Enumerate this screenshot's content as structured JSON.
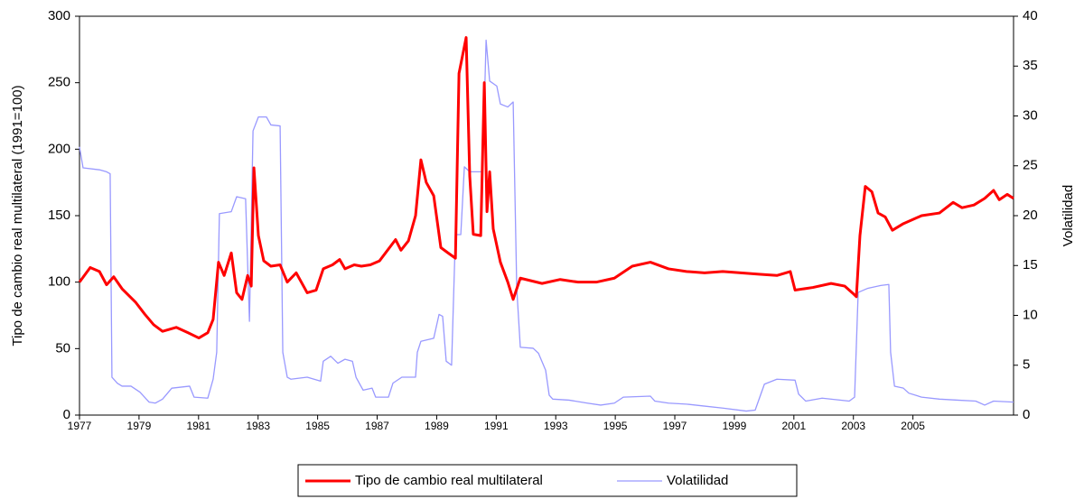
{
  "chart_data": {
    "type": "line",
    "y_label": "Tipo de cambio real multilateral (1991=100)",
    "y2_label": "Volatilidad",
    "xlim": [
      1977,
      2008.38
    ],
    "xticks": [
      1977,
      1979,
      1981,
      1983,
      1985,
      1987,
      1989,
      1991,
      1993,
      1995,
      1997,
      1999,
      2001,
      2003,
      2005
    ],
    "ylim": [
      0,
      300
    ],
    "yticks": [
      0,
      50,
      100,
      150,
      200,
      250,
      300
    ],
    "y2lim": [
      0,
      40
    ],
    "y2ticks": [
      0,
      5,
      10,
      15,
      20,
      25,
      30,
      35,
      40
    ],
    "legend": "bottom",
    "series": [
      {
        "name": "Tipo de cambio real multilateral",
        "color": "#ff0000",
        "width": 3,
        "x": [
          1977.0,
          1977.36,
          1977.67,
          1977.91,
          1978.15,
          1978.43,
          1978.88,
          1979.19,
          1979.49,
          1979.79,
          1980.25,
          1980.64,
          1981.01,
          1981.31,
          1981.49,
          1981.67,
          1981.86,
          1982.1,
          1982.28,
          1982.46,
          1982.65,
          1982.77,
          1982.86,
          1983.01,
          1983.19,
          1983.43,
          1983.74,
          1983.98,
          1984.28,
          1984.65,
          1984.95,
          1985.19,
          1985.5,
          1985.74,
          1985.92,
          1986.23,
          1986.47,
          1986.77,
          1987.08,
          1987.62,
          1987.8,
          1988.05,
          1988.29,
          1988.47,
          1988.65,
          1988.9,
          1989.14,
          1989.38,
          1989.63,
          1989.75,
          1989.99,
          1990.11,
          1990.23,
          1990.48,
          1990.6,
          1990.69,
          1990.78,
          1990.9,
          1991.14,
          1991.39,
          1991.57,
          1991.81,
          1992.54,
          1993.15,
          1993.75,
          1994.36,
          1994.97,
          1995.57,
          1996.18,
          1996.79,
          1997.39,
          1998.0,
          1998.61,
          1999.22,
          1999.82,
          2000.43,
          2000.88,
          2001.04,
          2001.64,
          2002.25,
          2002.71,
          2003.01,
          2003.1,
          2003.22,
          2003.4,
          2003.62,
          2003.83,
          2004.07,
          2004.31,
          2004.68,
          2005.29,
          2005.89,
          2006.35,
          2006.65,
          2007.05,
          2007.41,
          2007.71,
          2007.9,
          2008.17,
          2008.38
        ],
        "values": [
          100,
          111,
          108,
          98,
          104,
          95,
          85,
          76,
          68,
          63,
          66,
          62,
          58,
          62,
          72,
          115,
          105,
          122,
          92,
          87,
          105,
          97,
          186,
          135,
          116,
          112,
          113,
          100,
          107,
          92,
          94,
          110,
          113,
          117,
          110,
          113,
          112,
          113,
          116,
          132,
          124,
          131,
          150,
          192,
          175,
          165,
          126,
          122,
          118,
          257,
          284,
          180,
          136,
          135,
          250,
          153,
          183,
          140,
          115,
          100,
          87,
          103,
          99,
          102,
          100,
          100,
          103,
          112,
          115,
          110,
          108,
          107,
          108,
          107,
          106,
          105,
          108,
          94,
          96,
          99,
          97,
          91,
          89,
          135,
          172,
          168,
          152,
          149,
          139,
          144,
          150,
          152,
          160,
          156,
          158,
          163,
          169,
          162,
          166,
          163
        ]
      },
      {
        "name": "Volatilidad",
        "color": "#9999ff",
        "width": 1.3,
        "axis": "y2",
        "x": [
          1977.0,
          1977.12,
          1977.67,
          1977.91,
          1978.03,
          1978.09,
          1978.27,
          1978.43,
          1978.73,
          1979.03,
          1979.34,
          1979.55,
          1979.79,
          1980.1,
          1980.7,
          1980.85,
          1981.31,
          1981.49,
          1981.61,
          1981.7,
          1982.1,
          1982.28,
          1982.58,
          1982.71,
          1982.83,
          1983.01,
          1983.28,
          1983.43,
          1983.74,
          1983.83,
          1983.98,
          1984.1,
          1984.65,
          1985.1,
          1985.19,
          1985.44,
          1985.68,
          1985.92,
          1986.17,
          1986.29,
          1986.53,
          1986.83,
          1986.95,
          1987.38,
          1987.53,
          1987.83,
          1988.29,
          1988.35,
          1988.47,
          1988.9,
          1989.08,
          1989.2,
          1989.32,
          1989.5,
          1989.63,
          1989.81,
          1989.93,
          1990.11,
          1990.54,
          1990.66,
          1990.78,
          1991.02,
          1991.14,
          1991.39,
          1991.57,
          1991.69,
          1991.81,
          1992.24,
          1992.42,
          1992.66,
          1992.78,
          1992.9,
          1993.45,
          1994.06,
          1994.51,
          1994.97,
          1995.27,
          1996.18,
          1996.33,
          1996.79,
          1997.39,
          1998.0,
          1998.61,
          1999.4,
          1999.7,
          2000.01,
          2000.43,
          2001.04,
          2001.16,
          2001.4,
          2001.95,
          2002.86,
          2003.04,
          2003.16,
          2003.47,
          2003.92,
          2004.19,
          2004.25,
          2004.38,
          2004.68,
          2004.86,
          2005.29,
          2005.89,
          2006.5,
          2007.11,
          2007.41,
          2007.71,
          2008.38
        ],
        "values": [
          26.9,
          24.8,
          24.6,
          24.4,
          24.2,
          3.8,
          3.2,
          2.9,
          2.9,
          2.3,
          1.3,
          1.2,
          1.6,
          2.7,
          2.9,
          1.8,
          1.7,
          3.6,
          6.3,
          20.2,
          20.4,
          21.9,
          21.7,
          9.4,
          28.5,
          29.9,
          29.9,
          29.1,
          29.0,
          6.3,
          3.8,
          3.6,
          3.8,
          3.4,
          5.4,
          5.9,
          5.2,
          5.6,
          5.4,
          3.8,
          2.5,
          2.7,
          1.8,
          1.8,
          3.2,
          3.8,
          3.8,
          6.3,
          7.4,
          7.7,
          10.1,
          9.9,
          5.4,
          5.0,
          18.1,
          18.1,
          24.9,
          24.4,
          24.4,
          37.6,
          33.5,
          33.0,
          31.2,
          30.9,
          31.4,
          12.7,
          6.8,
          6.7,
          6.2,
          4.5,
          2.0,
          1.6,
          1.5,
          1.2,
          1.0,
          1.2,
          1.8,
          1.9,
          1.4,
          1.2,
          1.1,
          0.9,
          0.7,
          0.4,
          0.5,
          3.1,
          3.6,
          3.5,
          2.1,
          1.4,
          1.7,
          1.4,
          1.8,
          12.3,
          12.7,
          13.0,
          13.1,
          6.3,
          2.9,
          2.7,
          2.2,
          1.8,
          1.6,
          1.5,
          1.4,
          1.0,
          1.4,
          1.3
        ]
      }
    ]
  }
}
